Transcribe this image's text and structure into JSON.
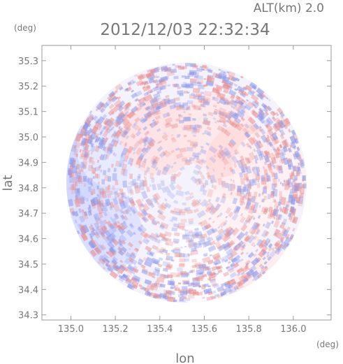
{
  "header": {
    "altitude": "ALT(km) 2.0",
    "timestamp": "2012/12/03 22:32:34"
  },
  "chart_data": {
    "type": "heatmap",
    "title": "2012/12/03 22:32:34",
    "subtitle": "ALT(km) 2.0",
    "xlabel": "lon",
    "ylabel": "lat",
    "x_unit": "(deg)",
    "y_unit": "(deg)",
    "xlim": [
      134.87,
      136.17
    ],
    "ylim": [
      34.28,
      35.36
    ],
    "x_ticks": [
      135.0,
      135.2,
      135.4,
      135.6,
      135.8,
      136.0
    ],
    "x_tick_labels": [
      "135.0",
      "135.2",
      "135.4",
      "135.6",
      "135.8",
      "136.0"
    ],
    "y_ticks": [
      34.3,
      34.4,
      34.5,
      34.6,
      34.7,
      34.8,
      34.9,
      35.0,
      35.1,
      35.2,
      35.3
    ],
    "y_tick_labels": [
      "34.3",
      "34.4",
      "34.5",
      "34.6",
      "34.7",
      "34.8",
      "34.9",
      "35.0",
      "35.1",
      "35.2",
      "35.3"
    ],
    "grid": false,
    "legend": "none",
    "radar_center": {
      "lon": 135.52,
      "lat": 34.82
    },
    "radar_radius_deg": 0.54,
    "colors": {
      "positive": "#e05a5a",
      "negative": "#5a6ae0",
      "zero": "#ffffff",
      "axes": "#999999",
      "text": "#777777"
    },
    "field_regions": [
      {
        "lon": 134.98,
        "lat": 34.88,
        "value": -0.45
      },
      {
        "lon": 135.1,
        "lat": 34.9,
        "value": -0.35
      },
      {
        "lon": 135.2,
        "lat": 34.95,
        "value": -0.15
      },
      {
        "lon": 135.4,
        "lat": 35.0,
        "value": 0.25
      },
      {
        "lon": 135.65,
        "lat": 35.02,
        "value": 0.2
      },
      {
        "lon": 135.78,
        "lat": 34.9,
        "value": 0.3
      },
      {
        "lon": 135.9,
        "lat": 34.88,
        "value": 0.1
      },
      {
        "lon": 135.05,
        "lat": 34.6,
        "value": -0.3
      },
      {
        "lon": 135.15,
        "lat": 34.62,
        "value": -0.3
      },
      {
        "lon": 135.55,
        "lat": 34.5,
        "value": 0.0
      },
      {
        "lon": 135.75,
        "lat": 34.7,
        "value": 0.1
      },
      {
        "lon": 135.9,
        "lat": 34.4,
        "value": 0.15
      }
    ]
  }
}
